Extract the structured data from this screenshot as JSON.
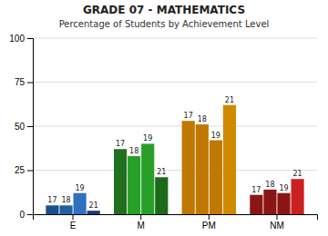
{
  "chart_data": {
    "type": "bar",
    "title": "GRADE 07 - MATHEMATICS",
    "subtitle": "Percentage of Students by Achievement Level",
    "categories": [
      "E",
      "M",
      "PM",
      "NM"
    ],
    "series": [
      {
        "name": "17",
        "values": [
          5,
          37,
          53,
          11
        ],
        "colors": [
          "#1a4f8a",
          "#207020",
          "#c07800",
          "#8b1515"
        ]
      },
      {
        "name": "18",
        "values": [
          5,
          33,
          51,
          14
        ],
        "colors": [
          "#2060a0",
          "#28a028",
          "#c07800",
          "#8b1515"
        ]
      },
      {
        "name": "19",
        "values": [
          12,
          40,
          42,
          12
        ],
        "colors": [
          "#3070c0",
          "#28a028",
          "#c07800",
          "#8b1515"
        ]
      },
      {
        "name": "21",
        "values": [
          2,
          21,
          62,
          20
        ],
        "colors": [
          "#203878",
          "#1a6a1a",
          "#d08a00",
          "#cc2020"
        ]
      }
    ],
    "ylim": [
      0,
      100
    ],
    "yticks": [
      0,
      25,
      50,
      75,
      100
    ],
    "grid": true
  }
}
